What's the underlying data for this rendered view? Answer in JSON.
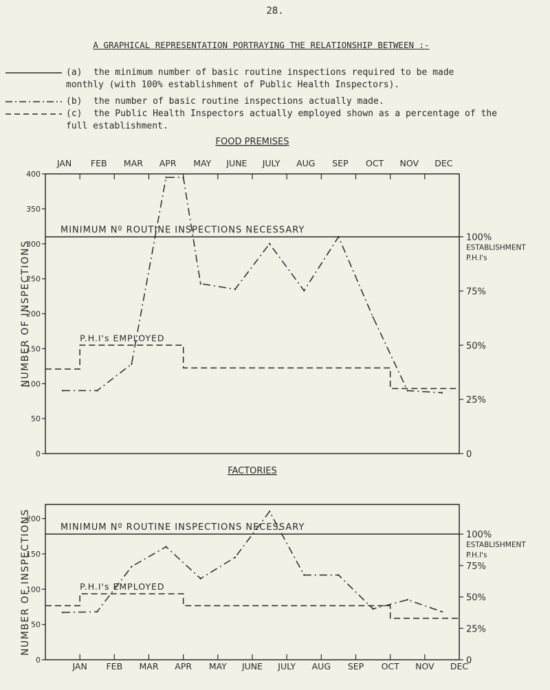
{
  "page_number": "28.",
  "title": "A GRAPHICAL REPRESENTATION PORTRAYING THE RELATIONSHIP BETWEEN :-",
  "legend": [
    {
      "key": "(a)",
      "text": "the minimum number of basic routine inspections required to be made",
      "text2": "monthly (with 100% establishment of Public Health Inspectors)."
    },
    {
      "key": "(b)",
      "text": "the number of basic routine inspections actually made.",
      "text2": ""
    },
    {
      "key": "(c)",
      "text": "the Public Health Inspectors actually employed shown as a percentage of the",
      "text2": "full establishment."
    }
  ],
  "chart_data": [
    {
      "type": "line",
      "title": "FOOD PREMISES",
      "ylabel": "NUMBER OF INSPECTIONS",
      "categories": [
        "JAN",
        "FEB",
        "MAR",
        "APR",
        "MAY",
        "JUNE",
        "JULY",
        "AUG",
        "SEP",
        "OCT",
        "NOV",
        "DEC"
      ],
      "category_position": "top",
      "ylim": [
        0,
        400
      ],
      "yticks": [
        0,
        50,
        100,
        150,
        200,
        250,
        300,
        350,
        400
      ],
      "ytick_labels": [
        "0",
        "50",
        "100",
        "150",
        "200",
        "250",
        "300",
        "350",
        "400"
      ],
      "right_axis": {
        "ylim": [
          0,
          100
        ],
        "ticks": [
          0,
          25,
          50,
          75,
          100
        ],
        "tick_labels": [
          "0",
          "25%",
          "50%",
          "75%",
          "100%"
        ],
        "extra_label": [
          "ESTABLISHMENT",
          "P.H.I's"
        ]
      },
      "minimum_label": "MINIMUM Nº ROUTINE INSPECTIONS NECESSARY",
      "phi_label": "P.H.I's EMPLOYED",
      "minimum_inspections": 310,
      "inspections_made": {
        "x": [
          0,
          1,
          2,
          3,
          3.5,
          4,
          5,
          6,
          7,
          8,
          9,
          10,
          11
        ],
        "y": [
          90,
          90,
          128,
          395,
          395,
          243,
          235,
          300,
          233,
          310,
          195,
          90,
          87
        ]
      },
      "phi_employed_pct": [
        [
          0,
          39
        ],
        [
          1,
          39
        ],
        [
          1,
          50
        ],
        [
          4,
          50
        ],
        [
          4,
          39.5
        ],
        [
          10,
          39.5
        ],
        [
          10,
          30
        ],
        [
          12,
          30
        ]
      ]
    },
    {
      "type": "line",
      "title": "FACTORIES",
      "ylabel": "NUMBER OF INSPECTIONS",
      "categories": [
        "JAN",
        "FEB",
        "MAR",
        "APR",
        "MAY",
        "JUNE",
        "JULY",
        "AUG",
        "SEP",
        "OCT",
        "NOV",
        "DEC"
      ],
      "category_position": "bottom",
      "ylim": [
        0,
        220
      ],
      "yticks": [
        0,
        50,
        100,
        150,
        200
      ],
      "ytick_labels": [
        "0",
        "50",
        "100",
        "150",
        "200"
      ],
      "right_axis": {
        "ylim": [
          0,
          100
        ],
        "ticks": [
          0,
          25,
          50,
          75,
          100
        ],
        "tick_labels": [
          "0",
          "25%",
          "50%",
          "75%",
          "100%"
        ],
        "extra_label": [
          "ESTABLISHMENT",
          "P.H.I's"
        ]
      },
      "minimum_label": "MINIMUM Nº ROUTINE INSPECTIONS NECESSARY",
      "phi_label": "P.H.I's EMPLOYED",
      "minimum_inspections": 178,
      "inspections_made": {
        "x": [
          0,
          1,
          2,
          3,
          4,
          5,
          6,
          7,
          8,
          9,
          10,
          11
        ],
        "y": [
          67,
          68,
          132,
          160,
          115,
          145,
          210,
          120,
          120,
          72,
          85,
          68
        ]
      },
      "phi_employed_pct": [
        [
          0,
          43
        ],
        [
          1,
          43
        ],
        [
          1,
          52.5
        ],
        [
          4,
          52.5
        ],
        [
          4,
          43
        ],
        [
          10,
          43
        ],
        [
          10,
          33
        ],
        [
          12,
          33
        ]
      ]
    }
  ]
}
